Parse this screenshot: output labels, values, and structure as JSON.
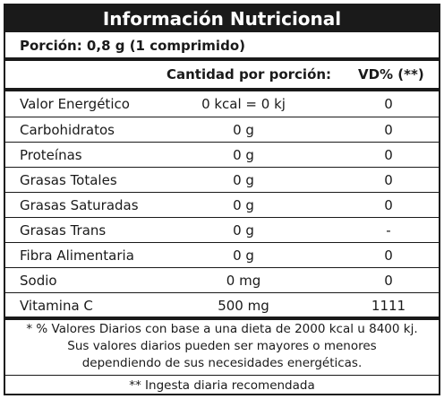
{
  "title": "Información Nutricional",
  "portion": "Porción: 0,8 g (1 comprimido)",
  "headers": {
    "quantity": "Cantidad por porción:",
    "vd": "VD% (**)"
  },
  "rows": [
    {
      "name": "Valor Energético",
      "qty": "0 kcal = 0 kj",
      "vd": "0"
    },
    {
      "name": "Carbohidratos",
      "qty": "0 g",
      "vd": "0"
    },
    {
      "name": "Proteínas",
      "qty": "0 g",
      "vd": "0"
    },
    {
      "name": "Grasas Totales",
      "qty": "0 g",
      "vd": "0"
    },
    {
      "name": "Grasas Saturadas",
      "qty": "0 g",
      "vd": "0"
    },
    {
      "name": "Grasas Trans",
      "qty": "0 g",
      "vd": "-"
    },
    {
      "name": "Fibra Alimentaria",
      "qty": "0 g",
      "vd": "0"
    },
    {
      "name": "Sodio",
      "qty": "0 mg",
      "vd": "0"
    },
    {
      "name": "Vitamina C",
      "qty": "500 mg",
      "vd": "1111"
    }
  ],
  "footnote": {
    "line1": "* % Valores Diarios con base a una dieta de 2000 kcal u 8400 kj.",
    "line2": "Sus valores diarios pueden ser mayores o menores",
    "line3": "dependiendo de sus necesidades energéticas."
  },
  "bottom_note": "** Ingesta diaria recomendada"
}
